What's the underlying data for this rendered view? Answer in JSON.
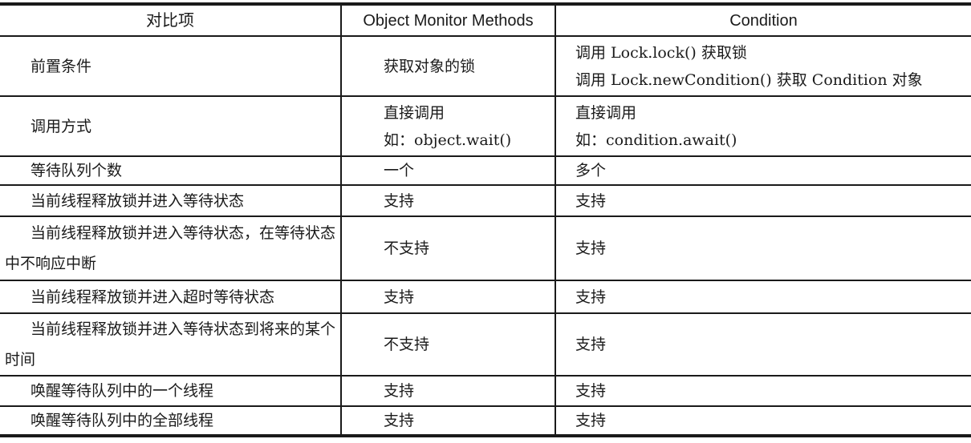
{
  "headers": [
    "对比项",
    "Object Monitor Methods",
    "Condition"
  ],
  "rows": [
    {
      "item": "前置条件",
      "monitor": [
        "获取对象的锁"
      ],
      "condition": [
        "调用 Lock.lock() 获取锁",
        "调用 Lock.newCondition() 获取 Condition 对象"
      ]
    },
    {
      "item": "调用方式",
      "monitor": [
        "直接调用",
        "如：object.wait()"
      ],
      "condition": [
        "直接调用",
        "如：condition.await()"
      ]
    },
    {
      "item": "等待队列个数",
      "monitor": [
        "一个"
      ],
      "condition": [
        "多个"
      ]
    },
    {
      "item": "当前线程释放锁并进入等待状态",
      "monitor": [
        "支持"
      ],
      "condition": [
        "支持"
      ]
    },
    {
      "item": "当前线程释放锁并进入等待状态，在等待状态中不响应中断",
      "monitor": [
        "不支持"
      ],
      "condition": [
        "支持"
      ]
    },
    {
      "item": "当前线程释放锁并进入超时等待状态",
      "monitor": [
        "支持"
      ],
      "condition": [
        "支持"
      ]
    },
    {
      "item": "当前线程释放锁并进入等待状态到将来的某个时间",
      "monitor": [
        "不支持"
      ],
      "condition": [
        "支持"
      ]
    },
    {
      "item": "唤醒等待队列中的一个线程",
      "monitor": [
        "支持"
      ],
      "condition": [
        "支持"
      ]
    },
    {
      "item": "唤醒等待队列中的全部线程",
      "monitor": [
        "支持"
      ],
      "condition": [
        "支持"
      ]
    }
  ]
}
